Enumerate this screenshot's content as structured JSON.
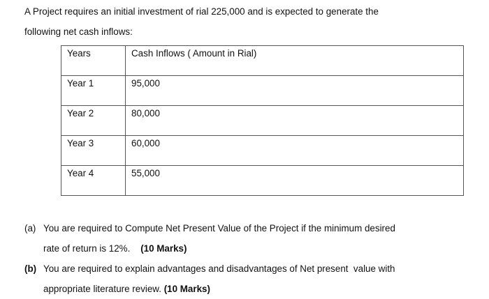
{
  "intro": {
    "lines": [
      "A Project requires an initial investment of rial 225,000 and is expected to generate the",
      "following net cash inflows:"
    ]
  },
  "table": {
    "header": [
      "Years",
      "Cash Inflows ( Amount in Rial)"
    ],
    "rows": [
      [
        "Year 1",
        "95,000"
      ],
      [
        "Year 2",
        "80,000"
      ],
      [
        "Year 3",
        "60,000"
      ],
      [
        "Year 4",
        "55,000"
      ]
    ]
  },
  "questions": [
    {
      "label": "(a)",
      "lines": [
        "You are required to Compute Net Present Value of the Project if the minimum desired",
        "rate of return is 12%."
      ],
      "marks": "(10 Marks)"
    },
    {
      "label": "(b)",
      "lines": [
        "You are required to explain advantages and disadvantages of Net present  value with",
        "appropriate literature review."
      ],
      "marks": "(10 Marks)"
    }
  ]
}
